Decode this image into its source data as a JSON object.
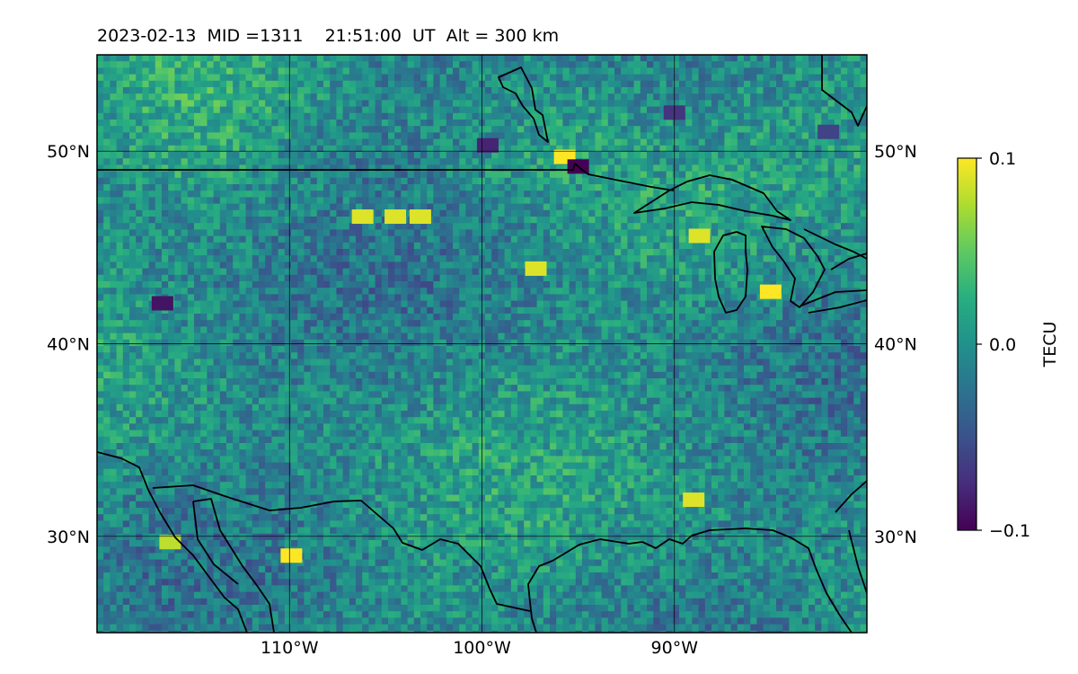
{
  "title": "2023-02-13  MID =1311    21:51:00  UT  Alt = 300 km",
  "map": {
    "lon_range": [
      -120,
      -80
    ],
    "lat_range": [
      25,
      55
    ],
    "lat_labels": [
      {
        "value": 50,
        "text": "50°N"
      },
      {
        "value": 40,
        "text": "40°N"
      },
      {
        "value": 30,
        "text": "30°N"
      }
    ],
    "lon_labels": [
      {
        "value": -110,
        "text": "110°W"
      },
      {
        "value": -100,
        "text": "100°W"
      },
      {
        "value": -90,
        "text": "90°W"
      }
    ],
    "gridlines": true,
    "background_color": "#2b7b8c",
    "colormap": "viridis",
    "value_range": [
      -0.1,
      0.1
    ],
    "anomalies": [
      {
        "lon": -109.9,
        "lat": 29.0,
        "value": 0.1
      },
      {
        "lon": -95.7,
        "lat": 49.7,
        "value": 0.1
      },
      {
        "lon": -106.2,
        "lat": 46.6,
        "value": 0.09
      },
      {
        "lon": -104.5,
        "lat": 46.6,
        "value": 0.09
      },
      {
        "lon": -103.2,
        "lat": 46.6,
        "value": 0.09
      },
      {
        "lon": -97.2,
        "lat": 43.9,
        "value": 0.09
      },
      {
        "lon": -85.0,
        "lat": 42.7,
        "value": 0.1
      },
      {
        "lon": -88.7,
        "lat": 45.6,
        "value": 0.09
      },
      {
        "lon": -89.0,
        "lat": 31.9,
        "value": 0.09
      },
      {
        "lon": -116.2,
        "lat": 29.7,
        "value": 0.08
      },
      {
        "lon": -95.0,
        "lat": 49.2,
        "value": -0.1
      },
      {
        "lon": -116.6,
        "lat": 42.1,
        "value": -0.09
      },
      {
        "lon": -99.7,
        "lat": 50.3,
        "value": -0.08
      },
      {
        "lon": -90.0,
        "lat": 52.0,
        "value": -0.07
      },
      {
        "lon": -82.0,
        "lat": 51.0,
        "value": -0.06
      }
    ]
  },
  "colorbar": {
    "label": "TECU",
    "ticks": [
      {
        "value": 0.1,
        "text": "0.1"
      },
      {
        "value": 0.0,
        "text": "0.0"
      },
      {
        "value": -0.1,
        "text": "−0.1"
      }
    ]
  }
}
